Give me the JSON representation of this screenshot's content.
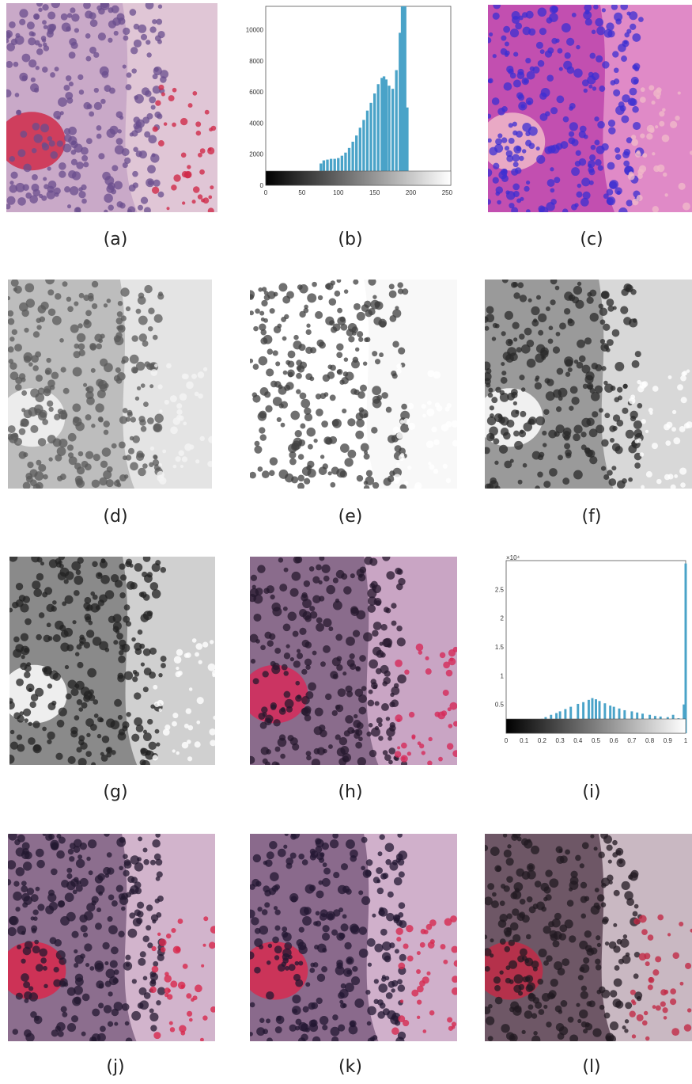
{
  "figure": {
    "captions": [
      "(a)",
      "(b)",
      "(c)",
      "(d)",
      "(e)",
      "(f)",
      "(g)",
      "(h)",
      "(i)",
      "(j)",
      "(k)",
      "(l)"
    ],
    "panels": [
      {
        "id": "a",
        "kind": "photo",
        "palette": [
          "#c9a9c8",
          "#6a4e8e",
          "#e0c6d6",
          "#d02b4a"
        ]
      },
      {
        "id": "b",
        "kind": "histogram"
      },
      {
        "id": "c",
        "kind": "photo",
        "palette": [
          "#c24fb0",
          "#3b2fd1",
          "#e08ac7",
          "#f0b8c9"
        ]
      },
      {
        "id": "d",
        "kind": "photo",
        "palette": [
          "#bdbdbd",
          "#5a5a5a",
          "#e4e4e4",
          "#f4f4f4"
        ]
      },
      {
        "id": "e",
        "kind": "photo",
        "palette": [
          "#ffffff",
          "#404040",
          "#f8f8f8",
          "#ffffff"
        ]
      },
      {
        "id": "f",
        "kind": "photo",
        "palette": [
          "#9a9a9a",
          "#2a2a2a",
          "#d8d8d8",
          "#ffffff"
        ]
      },
      {
        "id": "g",
        "kind": "photo",
        "palette": [
          "#8a8a8a",
          "#222222",
          "#d0d0d0",
          "#ffffff"
        ]
      },
      {
        "id": "h",
        "kind": "photo",
        "palette": [
          "#8a6c8c",
          "#25182e",
          "#c9a5c4",
          "#d62a5a"
        ]
      },
      {
        "id": "i",
        "kind": "histogram"
      },
      {
        "id": "j",
        "kind": "photo",
        "palette": [
          "#8c6e8e",
          "#231830",
          "#d2b4cc",
          "#d8284c"
        ]
      },
      {
        "id": "k",
        "kind": "photo",
        "palette": [
          "#8a6a8c",
          "#221731",
          "#d0b0cb",
          "#d62a50"
        ]
      },
      {
        "id": "l",
        "kind": "photo",
        "palette": [
          "#6e5766",
          "#221a22",
          "#c9b8c2",
          "#c22a46"
        ]
      }
    ]
  },
  "chart_data": [
    {
      "type": "bar",
      "panel": "b",
      "x_range": [
        0,
        255
      ],
      "ylim": [
        0,
        11500
      ],
      "xticks": [
        0,
        50,
        100,
        150,
        200,
        250
      ],
      "yticks": [
        0,
        2000,
        4000,
        6000,
        8000,
        10000
      ],
      "colorbar": "grayscale",
      "x": [
        68,
        72,
        76,
        80,
        85,
        90,
        95,
        100,
        105,
        110,
        115,
        120,
        125,
        130,
        135,
        140,
        145,
        150,
        155,
        160,
        163,
        166,
        170,
        175,
        180,
        185,
        188,
        190,
        192,
        195,
        198,
        200
      ],
      "values": [
        0,
        800,
        1400,
        1600,
        1650,
        1700,
        1700,
        1750,
        1900,
        2100,
        2400,
        2800,
        3200,
        3700,
        4200,
        4800,
        5300,
        5900,
        6500,
        6900,
        7000,
        6800,
        6400,
        6200,
        7400,
        9800,
        11500,
        11500,
        11500,
        5000,
        500,
        0
      ]
    },
    {
      "type": "bar",
      "panel": "i",
      "x_range": [
        0,
        1
      ],
      "ylim": [
        0,
        30000
      ],
      "xticks": [
        0,
        0.1,
        0.2,
        0.3,
        0.4,
        0.5,
        0.6,
        0.7,
        0.8,
        0.9,
        1
      ],
      "yticks": [
        0.5,
        1,
        1.5,
        2,
        2.5
      ],
      "ytick_multiplier": "×10⁴",
      "colorbar": "grayscale",
      "x": [
        0.05,
        0.08,
        0.1,
        0.12,
        0.15,
        0.18,
        0.2,
        0.22,
        0.25,
        0.28,
        0.3,
        0.33,
        0.36,
        0.4,
        0.43,
        0.46,
        0.48,
        0.5,
        0.52,
        0.55,
        0.58,
        0.6,
        0.63,
        0.66,
        0.7,
        0.73,
        0.76,
        0.8,
        0.83,
        0.86,
        0.9,
        0.93,
        0.96,
        0.99,
        1.0
      ],
      "values": [
        0,
        700,
        1200,
        1700,
        2000,
        2300,
        2500,
        2800,
        3200,
        3500,
        3800,
        4200,
        4600,
        5100,
        5400,
        5800,
        6100,
        5900,
        5600,
        5200,
        4800,
        4600,
        4300,
        4000,
        3800,
        3600,
        3400,
        3200,
        3000,
        2900,
        2800,
        3200,
        2600,
        5000,
        29500
      ]
    }
  ]
}
